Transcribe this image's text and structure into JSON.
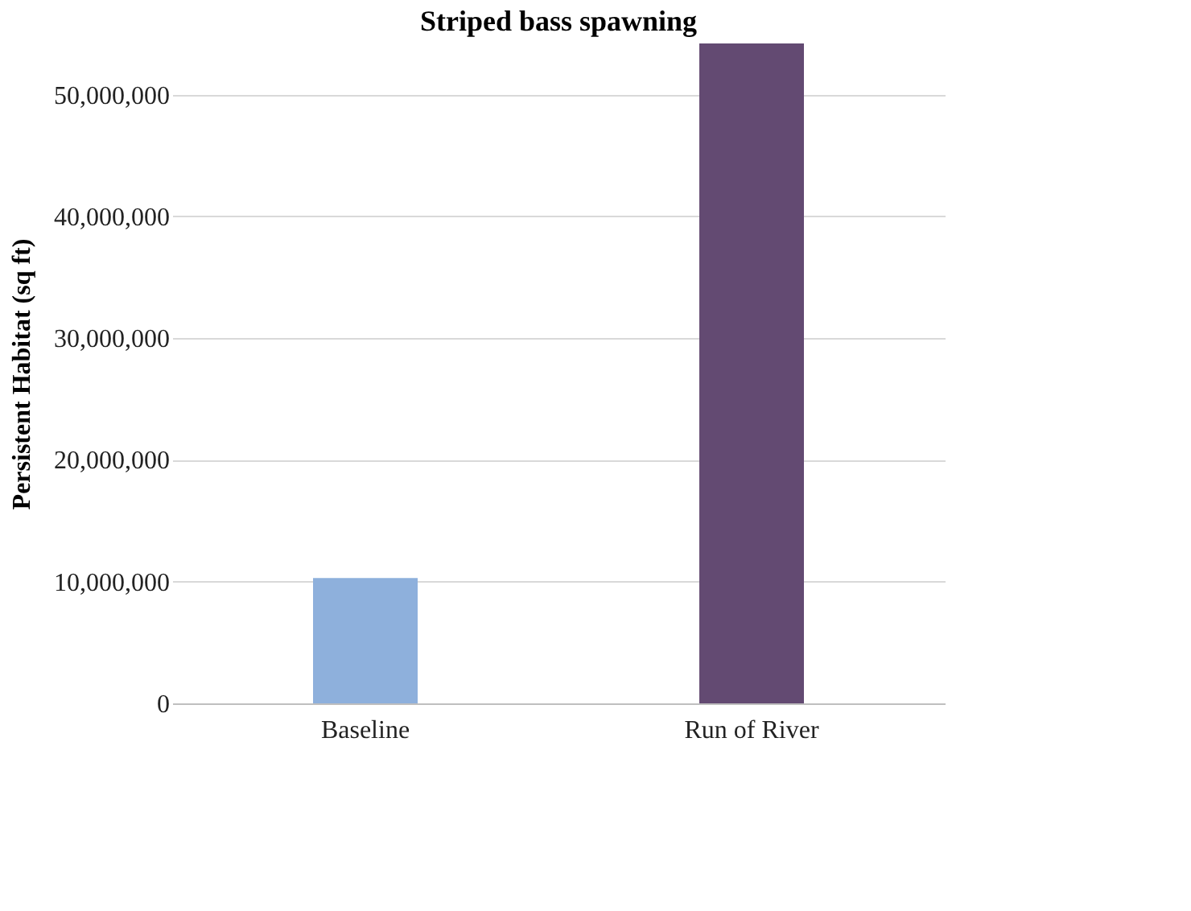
{
  "chart_data": {
    "type": "bar",
    "title": "Striped bass spawning",
    "ylabel": "Persistent Habitat (sq ft)",
    "categories": [
      "Baseline",
      "Run of River"
    ],
    "values": [
      10300000,
      54200000
    ],
    "colors": [
      "#8eb0dc",
      "#634a72"
    ],
    "ylim": [
      0,
      54200000
    ],
    "yticks": [
      0,
      {
        "value": 10000000,
        "label": "10,000,000"
      },
      {
        "value": 20000000,
        "label": "20,000,000"
      },
      {
        "value": 30000000,
        "label": "30,000,000"
      },
      {
        "value": 40000000,
        "label": "40,000,000"
      },
      {
        "value": 50000000,
        "label": "50,000,000"
      }
    ],
    "grid": "y",
    "legend": false
  }
}
